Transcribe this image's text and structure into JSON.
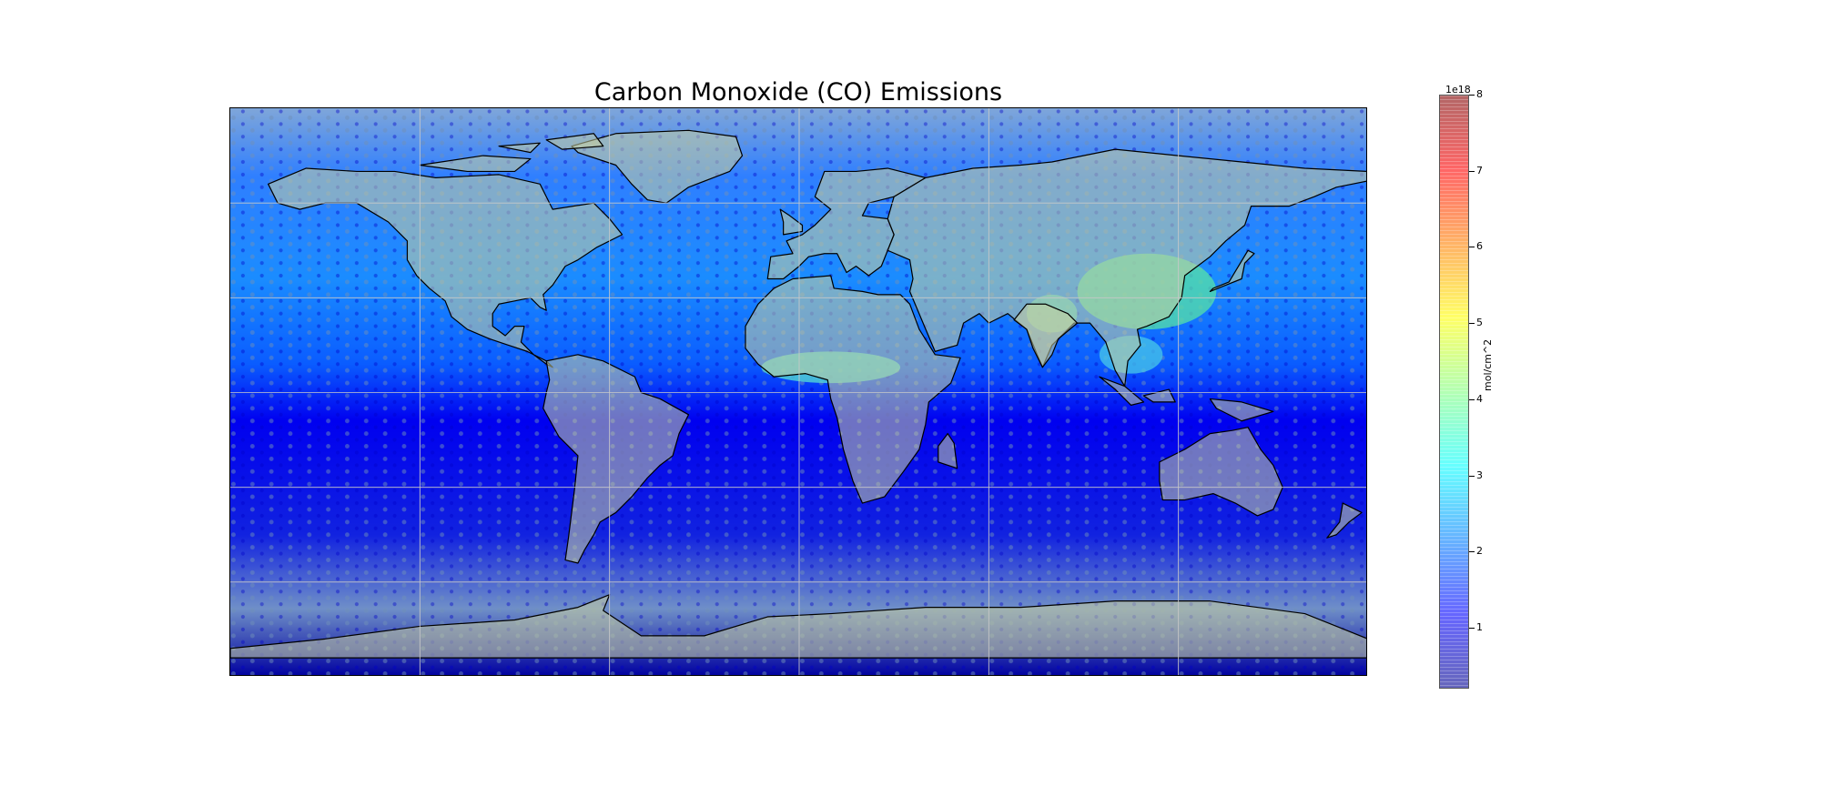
{
  "title": "Carbon Monoxide (CO) Emissions",
  "colorbar": {
    "units_label": "mol/cm^2",
    "exponent_label": "1e18",
    "ticks": [
      "1",
      "2",
      "3",
      "4",
      "5",
      "6",
      "7",
      "8"
    ],
    "range": [
      0.2,
      8
    ],
    "colormap": [
      "#00008f",
      "#0000ff",
      "#0080ff",
      "#00ffff",
      "#80ff80",
      "#ffff00",
      "#ff8000",
      "#ff0000",
      "#800000"
    ]
  },
  "map": {
    "projection": "plate-carree",
    "extent": {
      "lon": [
        -180,
        180
      ],
      "lat": [
        -90,
        90
      ]
    },
    "gridlines": true,
    "gridline_lons": [
      -120,
      -60,
      0,
      60,
      120
    ],
    "gridline_lats": [
      -60,
      -30,
      0,
      30,
      60
    ],
    "ocean_color": "#1a3fe0",
    "high_emission_color": "#7be0c8",
    "land_fill_color": "#c9d0a0",
    "coastline_color": "#000000"
  }
}
